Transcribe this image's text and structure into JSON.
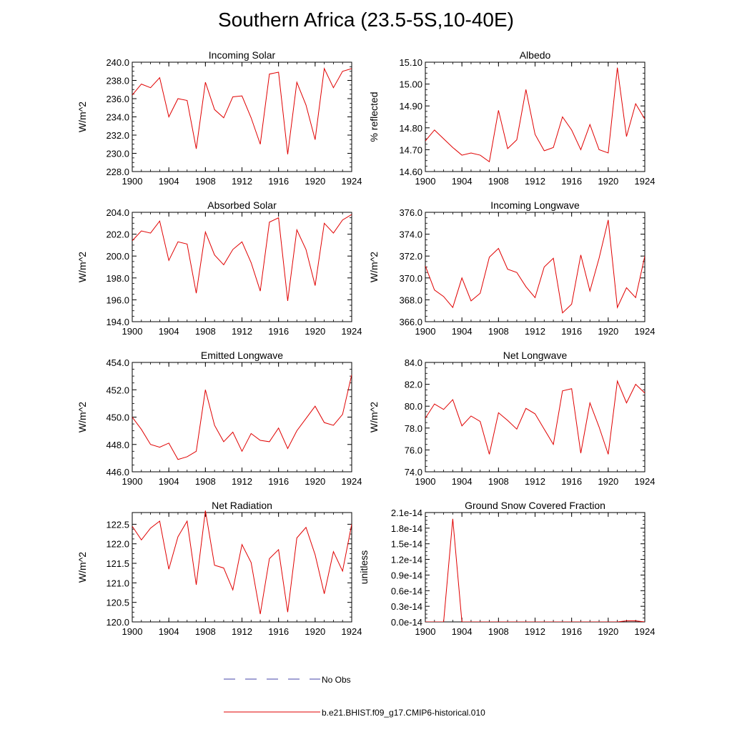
{
  "figure": {
    "title": "Southern Africa (23.5-5S,10-40E)",
    "legend": [
      {
        "label": "No Obs",
        "color": "#4444aa",
        "style": "dashed"
      },
      {
        "label": "b.e21.BHIST.f09_g17.CMIP6-historical.010",
        "color": "#e00000",
        "style": "solid"
      }
    ]
  },
  "chart_data": [
    {
      "type": "line",
      "title": "Incoming Solar",
      "ylabel": "W/m^2",
      "xlim": [
        1900,
        1924
      ],
      "ylim": [
        228,
        240
      ],
      "yticks": [
        "228.0",
        "230.0",
        "232.0",
        "234.0",
        "236.0",
        "238.0",
        "240.0"
      ],
      "ytick_values": [
        228,
        230,
        232,
        234,
        236,
        238,
        240
      ],
      "xticks": [
        "1900",
        "1904",
        "1908",
        "1912",
        "1916",
        "1920",
        "1924"
      ],
      "xtick_values": [
        1900,
        1904,
        1908,
        1912,
        1916,
        1920,
        1924
      ],
      "series": [
        {
          "color": "#e00000",
          "x": [
            1900,
            1901,
            1902,
            1903,
            1904,
            1905,
            1906,
            1907,
            1908,
            1909,
            1910,
            1911,
            1912,
            1913,
            1914,
            1915,
            1916,
            1917,
            1918,
            1919,
            1920,
            1921,
            1922,
            1923,
            1924
          ],
          "y": [
            236.4,
            237.6,
            237.2,
            238.3,
            234.0,
            236.0,
            235.8,
            230.5,
            237.8,
            234.8,
            233.9,
            236.2,
            236.3,
            233.9,
            231.0,
            238.7,
            238.9,
            229.9,
            237.8,
            235.3,
            231.5,
            239.3,
            237.2,
            239.0,
            239.3
          ]
        }
      ]
    },
    {
      "type": "line",
      "title": "Albedo",
      "ylabel": "% reflected",
      "xlim": [
        1900,
        1924
      ],
      "ylim": [
        14.6,
        15.1
      ],
      "yticks": [
        "14.60",
        "14.70",
        "14.80",
        "14.90",
        "15.00",
        "15.10"
      ],
      "ytick_values": [
        14.6,
        14.7,
        14.8,
        14.9,
        15.0,
        15.1
      ],
      "xticks": [
        "1900",
        "1904",
        "1908",
        "1912",
        "1916",
        "1920",
        "1924"
      ],
      "xtick_values": [
        1900,
        1904,
        1908,
        1912,
        1916,
        1920,
        1924
      ],
      "series": [
        {
          "color": "#e00000",
          "x": [
            1900,
            1901,
            1902,
            1903,
            1904,
            1905,
            1906,
            1907,
            1908,
            1909,
            1910,
            1911,
            1912,
            1913,
            1914,
            1915,
            1916,
            1917,
            1918,
            1919,
            1920,
            1921,
            1922,
            1923,
            1924
          ],
          "y": [
            14.74,
            14.79,
            14.75,
            14.71,
            14.675,
            14.685,
            14.675,
            14.645,
            14.88,
            14.705,
            14.745,
            14.975,
            14.77,
            14.695,
            14.71,
            14.85,
            14.79,
            14.7,
            14.815,
            14.7,
            14.685,
            15.075,
            14.76,
            14.91,
            14.84
          ]
        }
      ]
    },
    {
      "type": "line",
      "title": "Absorbed Solar",
      "ylabel": "W/m^2",
      "xlim": [
        1900,
        1924
      ],
      "ylim": [
        194,
        204
      ],
      "yticks": [
        "194.0",
        "196.0",
        "198.0",
        "200.0",
        "202.0",
        "204.0"
      ],
      "ytick_values": [
        194,
        196,
        198,
        200,
        202,
        204
      ],
      "xticks": [
        "1900",
        "1904",
        "1908",
        "1912",
        "1916",
        "1920",
        "1924"
      ],
      "xtick_values": [
        1900,
        1904,
        1908,
        1912,
        1916,
        1920,
        1924
      ],
      "series": [
        {
          "color": "#e00000",
          "x": [
            1900,
            1901,
            1902,
            1903,
            1904,
            1905,
            1906,
            1907,
            1908,
            1909,
            1910,
            1911,
            1912,
            1913,
            1914,
            1915,
            1916,
            1917,
            1918,
            1919,
            1920,
            1921,
            1922,
            1923,
            1924
          ],
          "y": [
            201.4,
            202.3,
            202.1,
            203.2,
            199.6,
            201.3,
            201.1,
            196.6,
            202.2,
            200.1,
            199.2,
            200.6,
            201.3,
            199.4,
            196.8,
            203.1,
            203.5,
            195.9,
            202.4,
            200.6,
            197.3,
            203.0,
            202.1,
            203.3,
            203.8
          ]
        }
      ]
    },
    {
      "type": "line",
      "title": "Incoming Longwave",
      "ylabel": "W/m^2",
      "xlim": [
        1900,
        1924
      ],
      "ylim": [
        366,
        376
      ],
      "yticks": [
        "366.0",
        "368.0",
        "370.0",
        "372.0",
        "374.0",
        "376.0"
      ],
      "ytick_values": [
        366,
        368,
        370,
        372,
        374,
        376
      ],
      "xticks": [
        "1900",
        "1904",
        "1908",
        "1912",
        "1916",
        "1920",
        "1924"
      ],
      "xtick_values": [
        1900,
        1904,
        1908,
        1912,
        1916,
        1920,
        1924
      ],
      "series": [
        {
          "color": "#e00000",
          "x": [
            1900,
            1901,
            1902,
            1903,
            1904,
            1905,
            1906,
            1907,
            1908,
            1909,
            1910,
            1911,
            1912,
            1913,
            1914,
            1915,
            1916,
            1917,
            1918,
            1919,
            1920,
            1921,
            1922,
            1923,
            1924
          ],
          "y": [
            371.1,
            368.9,
            368.3,
            367.3,
            370.0,
            367.9,
            368.6,
            371.9,
            372.7,
            370.8,
            370.5,
            369.2,
            368.2,
            371.0,
            371.8,
            366.8,
            367.6,
            372.1,
            368.8,
            371.8,
            375.3,
            367.3,
            369.1,
            368.2,
            372.0
          ]
        }
      ]
    },
    {
      "type": "line",
      "title": "Emitted Longwave",
      "ylabel": "W/m^2",
      "xlim": [
        1900,
        1924
      ],
      "ylim": [
        446,
        454
      ],
      "yticks": [
        "446.0",
        "448.0",
        "450.0",
        "452.0",
        "454.0"
      ],
      "ytick_values": [
        446,
        448,
        450,
        452,
        454
      ],
      "xticks": [
        "1900",
        "1904",
        "1908",
        "1912",
        "1916",
        "1920",
        "1924"
      ],
      "xtick_values": [
        1900,
        1904,
        1908,
        1912,
        1916,
        1920,
        1924
      ],
      "series": [
        {
          "color": "#e00000",
          "x": [
            1900,
            1901,
            1902,
            1903,
            1904,
            1905,
            1906,
            1907,
            1908,
            1909,
            1910,
            1911,
            1912,
            1913,
            1914,
            1915,
            1916,
            1917,
            1918,
            1919,
            1920,
            1921,
            1922,
            1923,
            1924
          ],
          "y": [
            450.0,
            449.1,
            448.0,
            447.8,
            448.1,
            446.9,
            447.1,
            447.5,
            452.0,
            449.4,
            448.2,
            448.9,
            447.5,
            448.8,
            448.3,
            448.2,
            449.2,
            447.7,
            449.0,
            449.9,
            450.8,
            449.6,
            449.4,
            450.2,
            453.1
          ]
        }
      ]
    },
    {
      "type": "line",
      "title": "Net Longwave",
      "ylabel": "W/m^2",
      "xlim": [
        1900,
        1924
      ],
      "ylim": [
        74,
        84
      ],
      "yticks": [
        "74.0",
        "76.0",
        "78.0",
        "80.0",
        "82.0",
        "84.0"
      ],
      "ytick_values": [
        74,
        76,
        78,
        80,
        82,
        84
      ],
      "xticks": [
        "1900",
        "1904",
        "1908",
        "1912",
        "1916",
        "1920",
        "1924"
      ],
      "xtick_values": [
        1900,
        1904,
        1908,
        1912,
        1916,
        1920,
        1924
      ],
      "series": [
        {
          "color": "#e00000",
          "x": [
            1900,
            1901,
            1902,
            1903,
            1904,
            1905,
            1906,
            1907,
            1908,
            1909,
            1910,
            1911,
            1912,
            1913,
            1914,
            1915,
            1916,
            1917,
            1918,
            1919,
            1920,
            1921,
            1922,
            1923,
            1924
          ],
          "y": [
            78.9,
            80.2,
            79.7,
            80.6,
            78.2,
            79.1,
            78.6,
            75.6,
            79.4,
            78.7,
            77.9,
            79.8,
            79.3,
            77.9,
            76.5,
            81.4,
            81.6,
            75.7,
            80.3,
            78.1,
            75.6,
            82.3,
            80.3,
            82.0,
            81.2
          ]
        }
      ]
    },
    {
      "type": "line",
      "title": "Net Radiation",
      "ylabel": "W/m^2",
      "xlim": [
        1900,
        1924
      ],
      "ylim": [
        120,
        122.8
      ],
      "yticks": [
        "120.0",
        "120.5",
        "121.0",
        "121.5",
        "122.0",
        "122.5"
      ],
      "ytick_values": [
        120,
        120.5,
        121,
        121.5,
        122,
        122.5
      ],
      "xticks": [
        "1900",
        "1904",
        "1908",
        "1912",
        "1916",
        "1920",
        "1924"
      ],
      "xtick_values": [
        1900,
        1904,
        1908,
        1912,
        1916,
        1920,
        1924
      ],
      "series": [
        {
          "color": "#e00000",
          "x": [
            1900,
            1901,
            1902,
            1903,
            1904,
            1905,
            1906,
            1907,
            1908,
            1909,
            1910,
            1911,
            1912,
            1913,
            1914,
            1915,
            1916,
            1917,
            1918,
            1919,
            1920,
            1921,
            1922,
            1923,
            1924
          ],
          "y": [
            122.45,
            122.1,
            122.4,
            122.58,
            121.35,
            122.18,
            122.58,
            120.95,
            122.85,
            121.45,
            121.38,
            120.82,
            121.98,
            121.52,
            120.2,
            121.62,
            121.85,
            120.25,
            122.15,
            122.42,
            121.72,
            120.72,
            121.8,
            121.3,
            122.5
          ]
        }
      ]
    },
    {
      "type": "line",
      "title": "Ground Snow Covered Fraction",
      "ylabel": "unitless",
      "xlim": [
        1900,
        1924
      ],
      "ylim": [
        0,
        2.1e-14
      ],
      "yticks": [
        "0.0e-14",
        "0.3e-14",
        "0.6e-14",
        "0.9e-14",
        "1.2e-14",
        "1.5e-14",
        "1.8e-14",
        "2.1e-14"
      ],
      "ytick_values": [
        0,
        3e-15,
        6e-15,
        9e-15,
        1.2e-14,
        1.5e-14,
        1.8e-14,
        2.1e-14
      ],
      "xticks": [
        "1900",
        "1904",
        "1908",
        "1912",
        "1916",
        "1920",
        "1924"
      ],
      "xtick_values": [
        1900,
        1904,
        1908,
        1912,
        1916,
        1920,
        1924
      ],
      "series": [
        {
          "color": "#e00000",
          "x": [
            1900,
            1901,
            1902,
            1903,
            1904,
            1905,
            1906,
            1907,
            1908,
            1909,
            1910,
            1911,
            1912,
            1913,
            1914,
            1915,
            1916,
            1917,
            1918,
            1919,
            1920,
            1921,
            1922,
            1923,
            1924
          ],
          "y": [
            0,
            0,
            0,
            1.98e-14,
            0,
            0,
            0,
            0,
            0,
            0,
            0,
            0,
            0,
            0,
            0,
            0,
            0,
            0,
            0,
            0,
            0,
            0,
            2e-16,
            2e-16,
            0
          ]
        }
      ]
    }
  ]
}
